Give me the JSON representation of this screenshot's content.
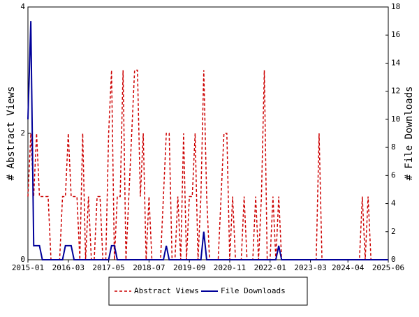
{
  "chart_data": {
    "type": "line",
    "ylabel": "# Abstract Views",
    "y2label": "# File Downloads",
    "x": [
      "2015-01",
      "2015-02",
      "2015-03",
      "2015-04",
      "2015-05",
      "2015-06",
      "2015-07",
      "2015-08",
      "2015-09",
      "2015-10",
      "2015-11",
      "2015-12",
      "2016-01",
      "2016-02",
      "2016-03",
      "2016-04",
      "2016-05",
      "2016-06",
      "2016-07",
      "2016-08",
      "2016-09",
      "2016-10",
      "2016-11",
      "2016-12",
      "2017-01",
      "2017-02",
      "2017-03",
      "2017-04",
      "2017-05",
      "2017-06",
      "2017-07",
      "2017-08",
      "2017-09",
      "2017-10",
      "2017-11",
      "2017-12",
      "2018-01",
      "2018-02",
      "2018-03",
      "2018-04",
      "2018-05",
      "2018-06",
      "2018-07",
      "2018-08",
      "2018-09",
      "2018-10",
      "2018-11",
      "2018-12",
      "2019-01",
      "2019-02",
      "2019-03",
      "2019-04",
      "2019-05",
      "2019-06",
      "2019-07",
      "2019-08",
      "2019-09",
      "2019-10",
      "2019-11",
      "2019-12",
      "2020-01",
      "2020-02",
      "2020-03",
      "2020-04",
      "2020-05",
      "2020-06",
      "2020-07",
      "2020-08",
      "2020-09",
      "2020-10",
      "2020-11",
      "2020-12",
      "2021-01",
      "2021-02",
      "2021-03",
      "2021-04",
      "2021-05",
      "2021-06",
      "2021-07",
      "2021-08",
      "2021-09",
      "2021-10",
      "2021-11",
      "2021-12",
      "2022-01",
      "2022-02",
      "2022-03",
      "2022-04",
      "2022-05",
      "2022-06",
      "2022-07",
      "2022-08",
      "2022-09",
      "2022-10",
      "2022-11",
      "2022-12",
      "2023-01",
      "2023-02",
      "2023-03",
      "2023-04",
      "2023-05",
      "2023-06",
      "2023-07",
      "2023-08",
      "2023-09",
      "2023-10",
      "2023-11",
      "2023-12",
      "2024-01",
      "2024-02",
      "2024-03",
      "2024-04",
      "2024-05",
      "2024-06",
      "2024-07",
      "2024-08",
      "2024-09",
      "2024-10",
      "2024-11",
      "2024-12",
      "2025-01",
      "2025-02",
      "2025-03",
      "2025-04",
      "2025-05",
      "2025-06"
    ],
    "series": [
      {
        "name": "Abstract Views",
        "color": "#cc0000",
        "dashed": true,
        "values": [
          1,
          2,
          1,
          2,
          1,
          1,
          1,
          1,
          0,
          0,
          0,
          0,
          1,
          1,
          2,
          1,
          1,
          1,
          0,
          2,
          0,
          1,
          0,
          0,
          1,
          1,
          0,
          0,
          2,
          3,
          0,
          1,
          1,
          3,
          0,
          1,
          2,
          3,
          3,
          1,
          2,
          0,
          1,
          0,
          0,
          0,
          0,
          1,
          2,
          2,
          0,
          0,
          1,
          0,
          2,
          0,
          1,
          1,
          2,
          0,
          1,
          3,
          1,
          0,
          0,
          0,
          0,
          1,
          2,
          2,
          0,
          1,
          0,
          0,
          0,
          1,
          0,
          0,
          0,
          1,
          0,
          1,
          3,
          0,
          0,
          1,
          0,
          1,
          0,
          0,
          0,
          0,
          0,
          0,
          0,
          0,
          0,
          0,
          0,
          0,
          0,
          2,
          0,
          0,
          0,
          0,
          0,
          0,
          0,
          0,
          0,
          0,
          0,
          0,
          0,
          0,
          1,
          0,
          1,
          0,
          0,
          0,
          0,
          0,
          0,
          0
        ]
      },
      {
        "name": "File Downloads",
        "color": "#000099",
        "dashed": false,
        "axis": "y2",
        "values": [
          10,
          17,
          1,
          1,
          1,
          0,
          0,
          0,
          0,
          0,
          0,
          0,
          0,
          1,
          1,
          1,
          0,
          0,
          0,
          0,
          0,
          0,
          0,
          0,
          0,
          0,
          0,
          0,
          0,
          1,
          1,
          0,
          0,
          0,
          0,
          0,
          0,
          0,
          0,
          0,
          0,
          0,
          0,
          0,
          0,
          0,
          0,
          0,
          1,
          0,
          0,
          0,
          0,
          0,
          0,
          0,
          0,
          0,
          0,
          0,
          0,
          2,
          0,
          0,
          0,
          0,
          0,
          0,
          0,
          0,
          0,
          0,
          0,
          0,
          0,
          0,
          0,
          0,
          0,
          0,
          0,
          0,
          0,
          0,
          0,
          0,
          0,
          1,
          0,
          0,
          0,
          0,
          0,
          0,
          0,
          0,
          0,
          0,
          0,
          0,
          0,
          0,
          0,
          0,
          0,
          0,
          0,
          0,
          0,
          0,
          0,
          0,
          0,
          0,
          0,
          0,
          0,
          0,
          0,
          0,
          0,
          0,
          0,
          0,
          0,
          0
        ]
      }
    ],
    "xlim": [
      "2015-01",
      "2025-06"
    ],
    "xticks": [
      "2015-01",
      "2016-03",
      "2017-05",
      "2018-07",
      "2019-09",
      "2020-11",
      "2022-01",
      "2023-03",
      "2024-04",
      "2025-06"
    ],
    "ylim": [
      0,
      4
    ],
    "yticks": [
      0,
      2,
      4
    ],
    "y2lim": [
      0,
      18
    ],
    "y2ticks": [
      0,
      2,
      4,
      6,
      8,
      10,
      12,
      14,
      16,
      18
    ]
  }
}
